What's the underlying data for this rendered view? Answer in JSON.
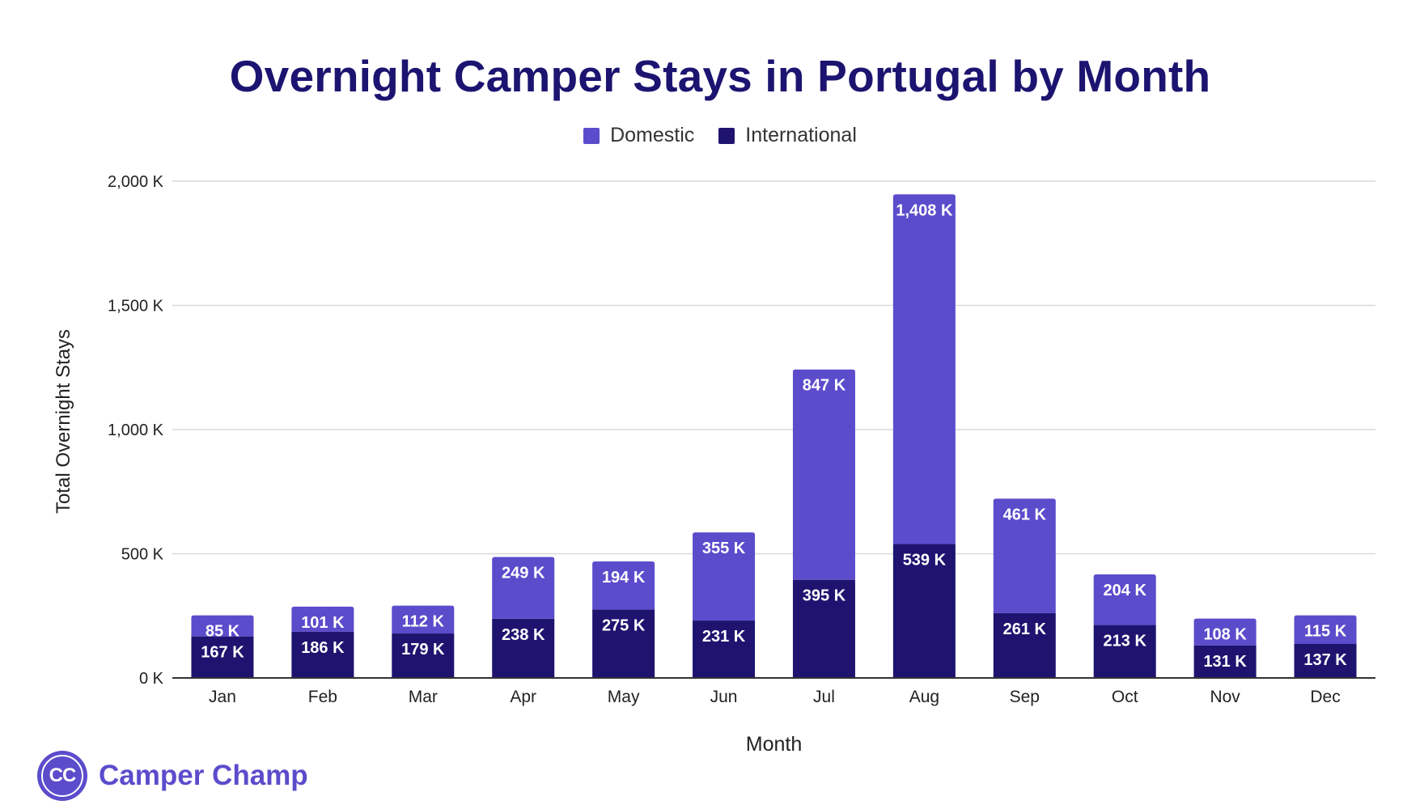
{
  "chart_data": {
    "type": "bar",
    "stacked": true,
    "title": "Overnight Camper Stays in Portugal by Month",
    "xlabel": "Month",
    "ylabel": "Total Overnight Stays",
    "categories": [
      "Jan",
      "Feb",
      "Mar",
      "Apr",
      "May",
      "Jun",
      "Jul",
      "Aug",
      "Sep",
      "Oct",
      "Nov",
      "Dec"
    ],
    "series": [
      {
        "name": "International",
        "color": "#1e1470",
        "values": [
          167,
          186,
          179,
          238,
          275,
          231,
          395,
          539,
          261,
          213,
          131,
          137
        ],
        "labels": [
          "167 K",
          "186 K",
          "179 K",
          "238 K",
          "275 K",
          "231 K",
          "395 K",
          "539 K",
          "261 K",
          "213 K",
          "131 K",
          "137 K"
        ]
      },
      {
        "name": "Domestic",
        "color": "#5b4ccc",
        "values": [
          85,
          101,
          112,
          249,
          194,
          355,
          847,
          1408,
          461,
          204,
          108,
          115
        ],
        "labels": [
          "85 K",
          "101 K",
          "112 K",
          "249 K",
          "194 K",
          "355 K",
          "847 K",
          "1,408 K",
          "461 K",
          "204 K",
          "108 K",
          "115 K"
        ]
      }
    ],
    "ylim": [
      0,
      2000
    ],
    "yticks": [
      0,
      500,
      1000,
      1500,
      2000
    ],
    "ytick_labels": [
      "0 K",
      "500 K",
      "1,000 K",
      "1,500 K",
      "2,000 K"
    ],
    "grid": true,
    "legend": "top-center"
  },
  "legend": {
    "domestic": "Domestic",
    "international": "International"
  },
  "brand": {
    "logo_text": "CC",
    "name": "Camper Champ"
  },
  "colors": {
    "title": "#1c1470",
    "domestic": "#5b4ccc",
    "international": "#1e1470",
    "gridline": "#d9d9d9",
    "axis": "#333333"
  }
}
